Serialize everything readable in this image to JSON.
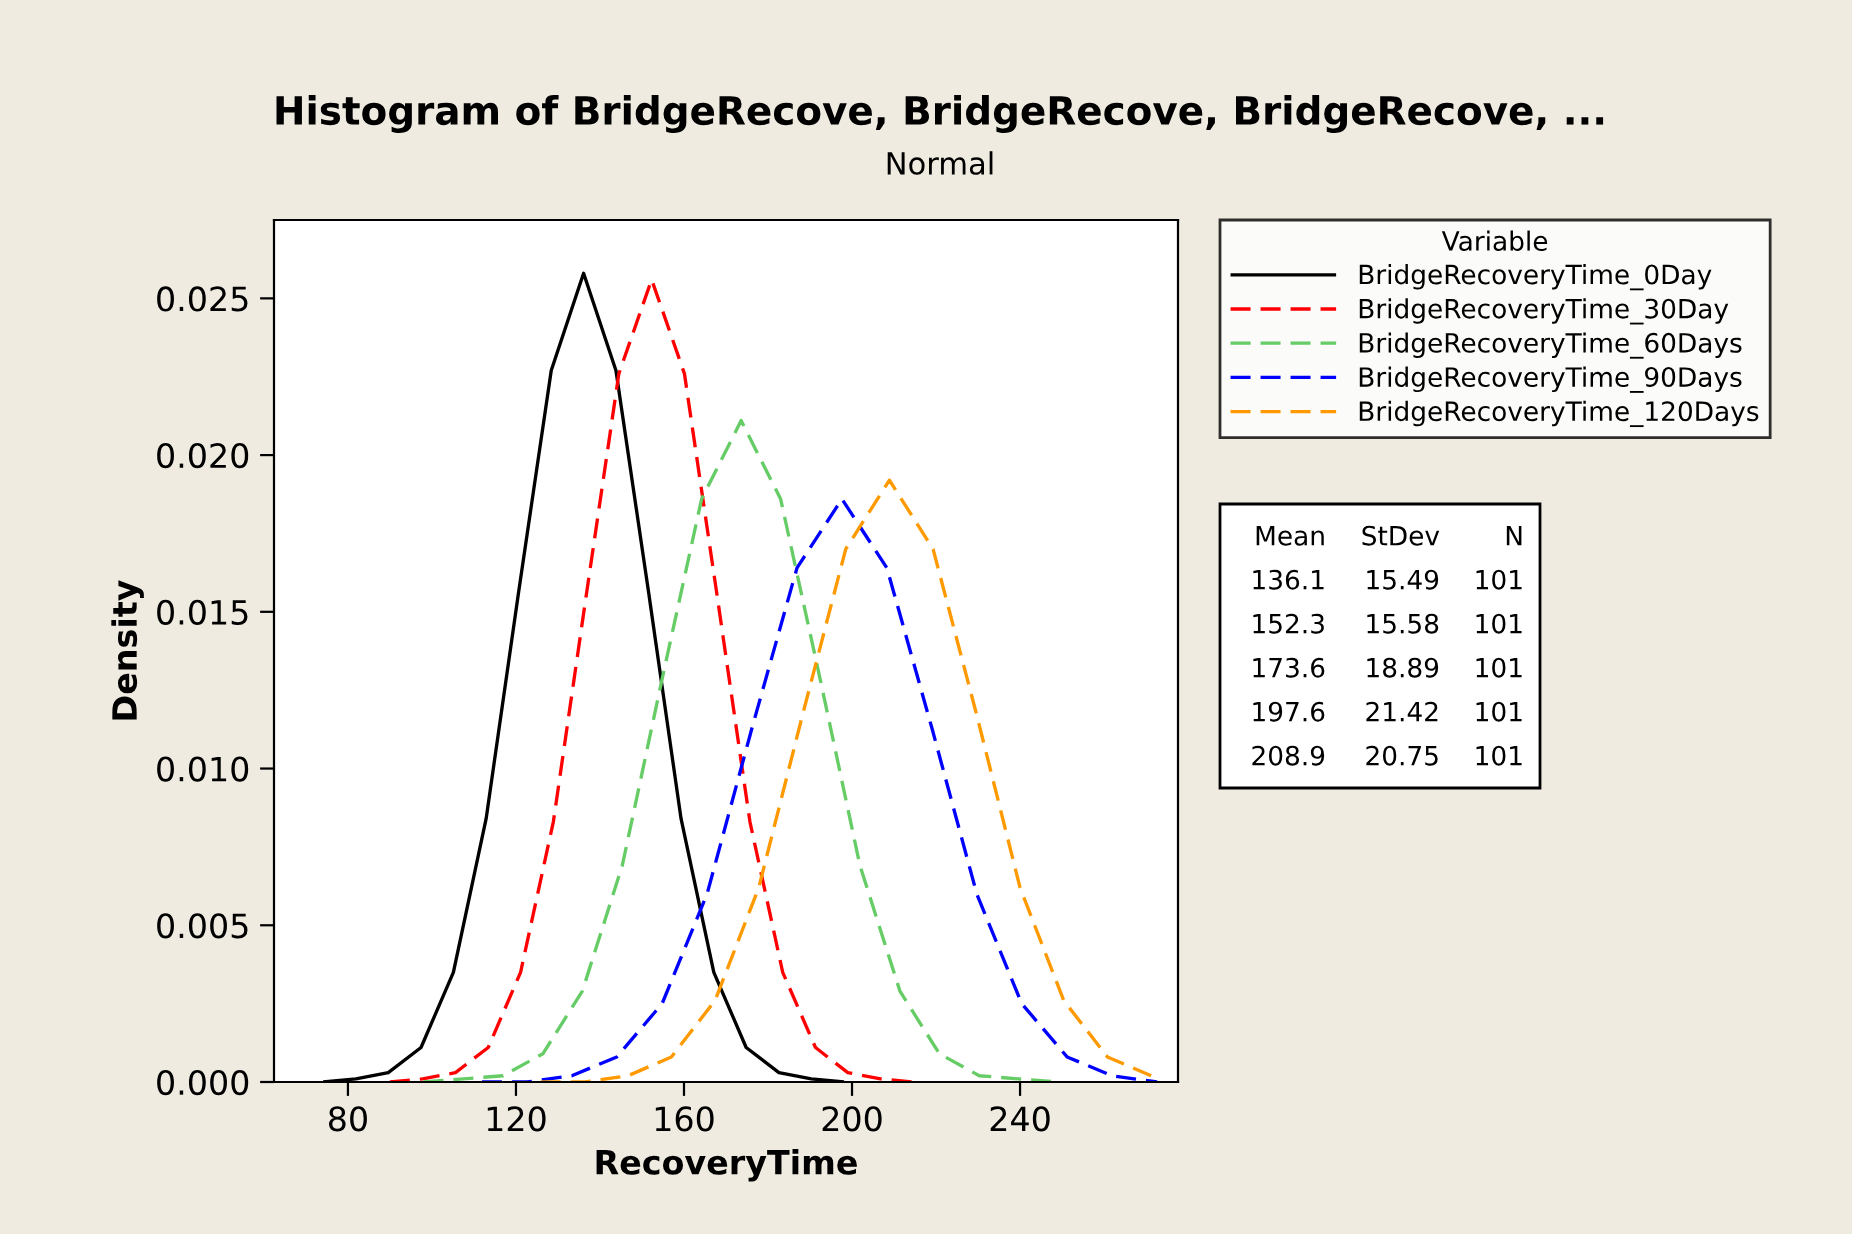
{
  "chart_data": {
    "type": "line",
    "title": "Histogram of BridgeRecove, BridgeRecove, BridgeRecove, ...",
    "subtitle": "Normal",
    "xlabel": "RecoveryTime",
    "ylabel": "Density",
    "legend_title": "Variable",
    "xlim": [
      62.4,
      277.6
    ],
    "ylim": [
      0,
      0.0275
    ],
    "xticks": [
      80,
      120,
      160,
      200,
      240
    ],
    "yticks": [
      {
        "value": 0,
        "label": "0.000"
      },
      {
        "value": 0.005,
        "label": "0.005"
      },
      {
        "value": 0.01,
        "label": "0.010"
      },
      {
        "value": 0.015,
        "label": "0.015"
      },
      {
        "value": 0.02,
        "label": "0.020"
      },
      {
        "value": 0.025,
        "label": "0.025"
      }
    ],
    "grid": false,
    "legend": "right",
    "series": [
      {
        "name": "BridgeRecoveryTime_0Day",
        "color": "#000000",
        "line_style": "solid",
        "x": [
          74.1,
          81.9,
          89.6,
          97.4,
          105.1,
          112.9,
          120.6,
          128.4,
          136.1,
          143.8,
          151.6,
          159.3,
          167.1,
          174.8,
          182.6,
          190.3,
          198.1
        ],
        "values": [
          0.0,
          0.0001,
          0.0003,
          0.0011,
          0.0035,
          0.0084,
          0.0156,
          0.0227,
          0.0258,
          0.0227,
          0.0156,
          0.0084,
          0.0035,
          0.0011,
          0.0003,
          0.0001,
          0.0
        ]
      },
      {
        "name": "BridgeRecoveryTime_30Day",
        "color": "#ff0000",
        "line_style": "dashed",
        "x": [
          90.0,
          97.8,
          105.6,
          113.4,
          121.1,
          128.9,
          136.7,
          144.5,
          152.3,
          160.1,
          167.9,
          175.7,
          183.5,
          191.3,
          199.0,
          206.8,
          214.6
        ],
        "values": [
          0.0,
          0.0001,
          0.0003,
          0.0011,
          0.0035,
          0.0083,
          0.0155,
          0.0226,
          0.0256,
          0.0226,
          0.0155,
          0.0083,
          0.0035,
          0.0011,
          0.0003,
          0.0001,
          0.0
        ]
      },
      {
        "name": "BridgeRecoveryTime_60Days",
        "color": "#66cc66",
        "line_style": "dashed",
        "x": [
          98.0,
          107.5,
          116.9,
          126.4,
          135.8,
          145.3,
          154.7,
          164.2,
          173.6,
          183.0,
          192.5,
          201.9,
          211.4,
          220.8,
          230.3,
          239.7,
          249.2
        ],
        "values": [
          0.0,
          0.0001,
          0.0002,
          0.0009,
          0.0029,
          0.0069,
          0.0128,
          0.0186,
          0.0211,
          0.0186,
          0.0128,
          0.0069,
          0.0029,
          0.0009,
          0.0002,
          0.0001,
          0.0
        ]
      },
      {
        "name": "BridgeRecoveryTime_90Days",
        "color": "#0000ff",
        "line_style": "dashed",
        "x": [
          111.9,
          122.6,
          133.3,
          144.0,
          154.8,
          165.5,
          176.2,
          186.9,
          197.6,
          208.3,
          219.0,
          229.7,
          240.4,
          251.2,
          261.9,
          272.6
        ],
        "values": [
          0.0,
          0.0,
          0.0002,
          0.0008,
          0.0025,
          0.006,
          0.0113,
          0.0164,
          0.0186,
          0.0164,
          0.0113,
          0.006,
          0.0025,
          0.0008,
          0.0002,
          0.0
        ]
      },
      {
        "name": "BridgeRecoveryTime_120Days",
        "color": "#ff9900",
        "line_style": "dashed",
        "x": [
          125.9,
          136.3,
          146.7,
          157.0,
          167.4,
          177.8,
          188.2,
          198.5,
          208.9,
          219.3,
          229.7,
          240.0,
          250.4,
          260.8,
          271.2
        ],
        "values": [
          0.0,
          0.0,
          0.0002,
          0.0008,
          0.0026,
          0.0062,
          0.0117,
          0.017,
          0.0192,
          0.017,
          0.0117,
          0.0062,
          0.0026,
          0.0008,
          0.0002
        ]
      }
    ],
    "annotations": [
      "Mean",
      "StDev",
      "N",
      "136.1",
      "15.49",
      "101",
      "152.3",
      "15.58",
      "101",
      "173.6",
      "18.89",
      "101",
      "197.6",
      "21.42",
      "101",
      "208.9",
      "20.75",
      "101"
    ]
  }
}
